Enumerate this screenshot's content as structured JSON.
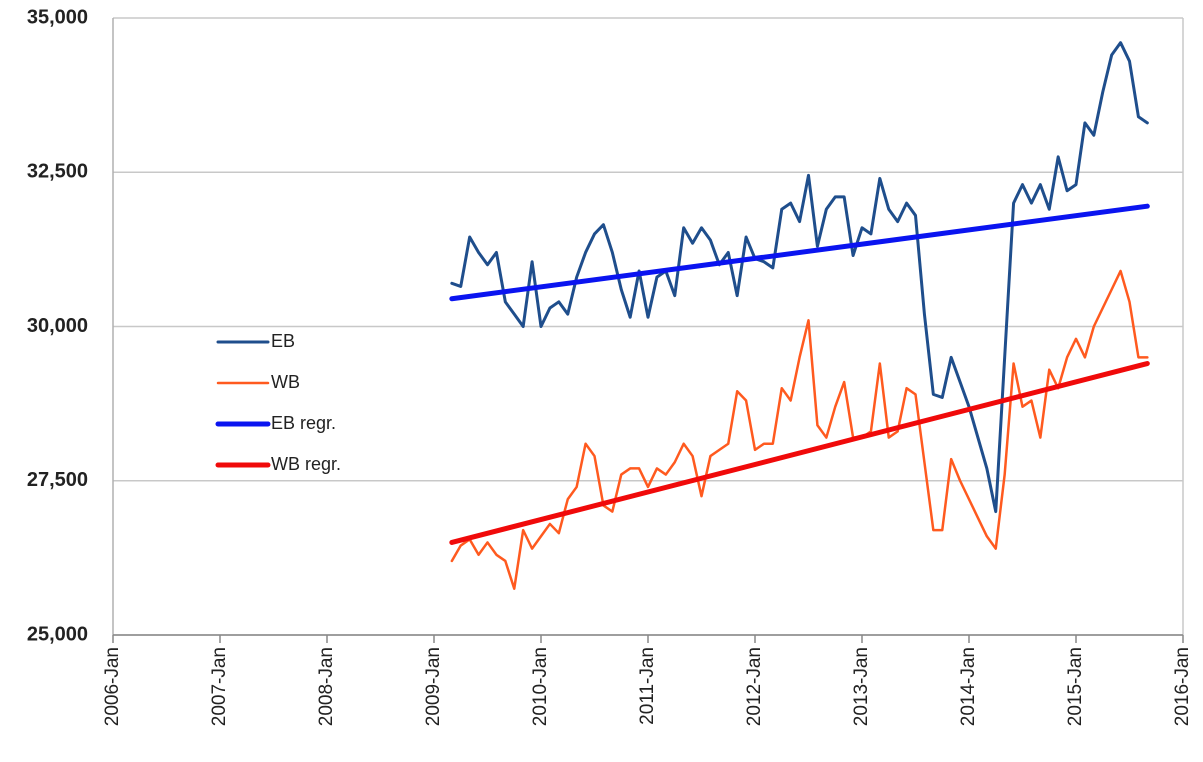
{
  "chart_data": {
    "type": "line",
    "x": [
      "2009-Mar",
      "2009-Apr",
      "2009-May",
      "2009-Jun",
      "2009-Jul",
      "2009-Aug",
      "2009-Sep",
      "2009-Oct",
      "2009-Nov",
      "2009-Dec",
      "2010-Jan",
      "2010-Feb",
      "2010-Mar",
      "2010-Apr",
      "2010-May",
      "2010-Jun",
      "2010-Jul",
      "2010-Aug",
      "2010-Sep",
      "2010-Oct",
      "2010-Nov",
      "2010-Dec",
      "2011-Jan",
      "2011-Feb",
      "2011-Mar",
      "2011-Apr",
      "2011-May",
      "2011-Jun",
      "2011-Jul",
      "2011-Aug",
      "2011-Sep",
      "2011-Oct",
      "2011-Nov",
      "2011-Dec",
      "2012-Jan",
      "2012-Feb",
      "2012-Mar",
      "2012-Apr",
      "2012-May",
      "2012-Jun",
      "2012-Jul",
      "2012-Aug",
      "2012-Sep",
      "2012-Oct",
      "2012-Nov",
      "2012-Dec",
      "2013-Jan",
      "2013-Feb",
      "2013-Mar",
      "2013-Apr",
      "2013-May",
      "2013-Jun",
      "2013-Jul",
      "2013-Aug",
      "2013-Sep",
      "2013-Oct",
      "2013-Nov",
      "2013-Dec",
      "2014-Jan",
      "2014-Feb",
      "2014-Mar",
      "2014-Apr",
      "2014-May",
      "2014-Jun",
      "2014-Jul",
      "2014-Aug",
      "2014-Sep",
      "2014-Oct",
      "2014-Nov",
      "2014-Dec",
      "2015-Jan",
      "2015-Feb",
      "2015-Mar",
      "2015-Apr",
      "2015-May",
      "2015-Jun",
      "2015-Jul",
      "2015-Aug",
      "2015-Sep"
    ],
    "series": [
      {
        "name": "EB",
        "color": "#1f4e8c",
        "linewidth": 3,
        "values": [
          30700,
          30650,
          31450,
          31200,
          31000,
          31200,
          30400,
          30200,
          30000,
          31050,
          30000,
          30300,
          30400,
          30200,
          30800,
          31200,
          31500,
          31650,
          31200,
          30600,
          30150,
          30900,
          30150,
          30800,
          30900,
          30500,
          31600,
          31350,
          31600,
          31400,
          31000,
          31200,
          30500,
          31450,
          31100,
          31050,
          30950,
          31900,
          32000,
          31700,
          32450,
          31300,
          31900,
          32100,
          32100,
          31150,
          31600,
          31500,
          32400,
          31900,
          31700,
          32000,
          31800,
          30200,
          28900,
          28850,
          29500,
          29100,
          28700,
          28200,
          27700,
          27000,
          29500,
          32000,
          32300,
          32000,
          32300,
          31900,
          32750,
          32200,
          32300,
          33300,
          33100,
          33800,
          34400,
          34600,
          34300,
          33400,
          33300
        ]
      },
      {
        "name": "WB",
        "color": "#ff5a1f",
        "linewidth": 2.5,
        "values": [
          26200,
          26450,
          26550,
          26300,
          26500,
          26300,
          26200,
          25750,
          26700,
          26400,
          26600,
          26800,
          26650,
          27200,
          27400,
          28100,
          27900,
          27100,
          27000,
          27600,
          27700,
          27700,
          27400,
          27700,
          27600,
          27800,
          28100,
          27900,
          27250,
          27900,
          28000,
          28100,
          28950,
          28800,
          28000,
          28100,
          28100,
          29000,
          28800,
          29500,
          30100,
          28400,
          28200,
          28700,
          29100,
          28200,
          28200,
          28300,
          29400,
          28200,
          28300,
          29000,
          28900,
          27800,
          26700,
          26700,
          27850,
          27500,
          27200,
          26900,
          26600,
          26400,
          27600,
          29400,
          28700,
          28800,
          28200,
          29300,
          29000,
          29500,
          29800,
          29500,
          30000,
          30300,
          30600,
          30900,
          30400,
          29500,
          29500
        ]
      },
      {
        "name": "EB regr.",
        "color": "#0a14f0",
        "linewidth": 5,
        "x": [
          "2009-Mar",
          "2015-Sep"
        ],
        "values": [
          30450,
          31950
        ]
      },
      {
        "name": "WB regr.",
        "color": "#f00a0a",
        "linewidth": 5,
        "x": [
          "2009-Mar",
          "2015-Sep"
        ],
        "values": [
          26500,
          29400
        ]
      }
    ],
    "xlim": [
      "2006-Jan",
      "2016-Jan"
    ],
    "xticks": [
      "2006-Jan",
      "2007-Jan",
      "2008-Jan",
      "2009-Jan",
      "2010-Jan",
      "2011-Jan",
      "2012-Jan",
      "2013-Jan",
      "2014-Jan",
      "2015-Jan",
      "2016-Jan"
    ],
    "ylim": [
      25000,
      35000
    ],
    "yticks": [
      {
        "value": 25000,
        "label": "25,000"
      },
      {
        "value": 27500,
        "label": "27,500"
      },
      {
        "value": 30000,
        "label": "30,000"
      },
      {
        "value": 32500,
        "label": "32,500"
      },
      {
        "value": 35000,
        "label": "35,000"
      }
    ],
    "grid": true,
    "legend": "center left"
  }
}
